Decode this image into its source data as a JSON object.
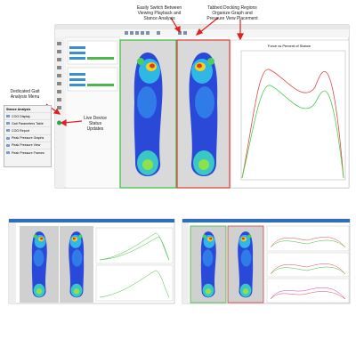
{
  "annotations": {
    "switch": "Easily Switch Between Viewing Playback and Stance Analysis",
    "docking": "Tabbed Docking Regions Organize Graph and Pressure View Placement",
    "menu": "Dedicated Gait Analysis Menu",
    "status": "Live Device Status Updates"
  },
  "menu": {
    "title": "Stance Analysis",
    "items": [
      "COG Display",
      "Gait Parameters Table",
      "COG Report",
      "Peak Pressure Graphs",
      "Peak Pressure View",
      "Peak Pressure Frames"
    ]
  },
  "graph": {
    "title": "Force vs Percent of Stance"
  }
}
